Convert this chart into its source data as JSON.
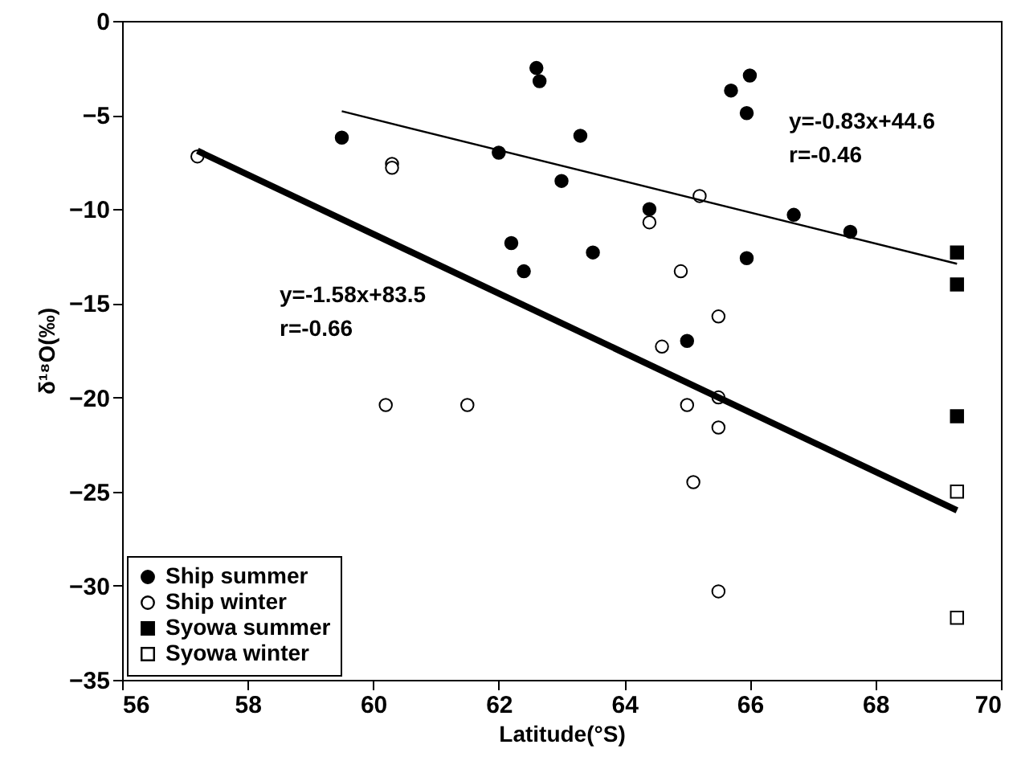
{
  "chart_data": {
    "type": "scatter",
    "xlabel": "Latitude(°S)",
    "ylabel": "δ¹⁸O(‰)",
    "xlim": [
      56,
      70
    ],
    "xticks": [
      56,
      58,
      60,
      62,
      64,
      66,
      68,
      70
    ],
    "ylim": [
      -35,
      0
    ],
    "yticks": [
      -35,
      -30,
      -25,
      -20,
      -15,
      -10,
      -5,
      0
    ],
    "grid": false,
    "legend": "bottom left",
    "series": [
      {
        "name": "Ship summer",
        "color": "#000000",
        "marker": "circle",
        "x": [
          59.5,
          62.0,
          62.6,
          62.65,
          62.2,
          62.4,
          63.0,
          63.3,
          63.5,
          64.4,
          65.0,
          65.7,
          66.0,
          65.95,
          65.95,
          66.7,
          67.6
        ],
        "values": [
          -6.2,
          -7.0,
          -2.5,
          -3.2,
          -11.8,
          -13.3,
          -8.5,
          -6.1,
          -12.3,
          -10.0,
          -17.0,
          -3.7,
          -2.9,
          -4.9,
          -12.6,
          -10.3,
          -11.2
        ]
      },
      {
        "name": "Ship winter",
        "color": "#ffffff",
        "marker": "circle",
        "x": [
          57.2,
          60.3,
          60.3,
          60.2,
          61.5,
          64.4,
          65.2,
          64.9,
          64.6,
          65.5,
          65.0,
          65.5,
          65.1,
          65.5,
          65.5
        ],
        "values": [
          -7.2,
          -7.6,
          -7.8,
          -20.4,
          -20.4,
          -10.7,
          -9.3,
          -13.3,
          -17.3,
          -15.7,
          -20.4,
          -20.0,
          -24.5,
          -21.6,
          -30.3
        ]
      },
      {
        "name": "Syowa summer",
        "color": "#000000",
        "marker": "square",
        "x": [
          69.3,
          69.3,
          69.3
        ],
        "values": [
          -12.3,
          -14.0,
          -21.0
        ]
      },
      {
        "name": "Syowa winter",
        "color": "#ffffff",
        "marker": "square",
        "x": [
          69.3,
          69.3
        ],
        "values": [
          -25.0,
          -31.7
        ]
      },
      {
        "type": "line",
        "color": "#000000",
        "x": [
          57.2,
          69.3
        ],
        "values": [
          -6.9,
          -26.0
        ]
      },
      {
        "type": "line",
        "color": "#000000",
        "x": [
          59.5,
          69.3
        ],
        "values": [
          -4.8,
          -12.9
        ]
      }
    ],
    "annotations": [
      "y=-1.58x+83.5",
      "r=-0.66",
      "y=-0.83x+44.6",
      "r=-0.46"
    ]
  }
}
